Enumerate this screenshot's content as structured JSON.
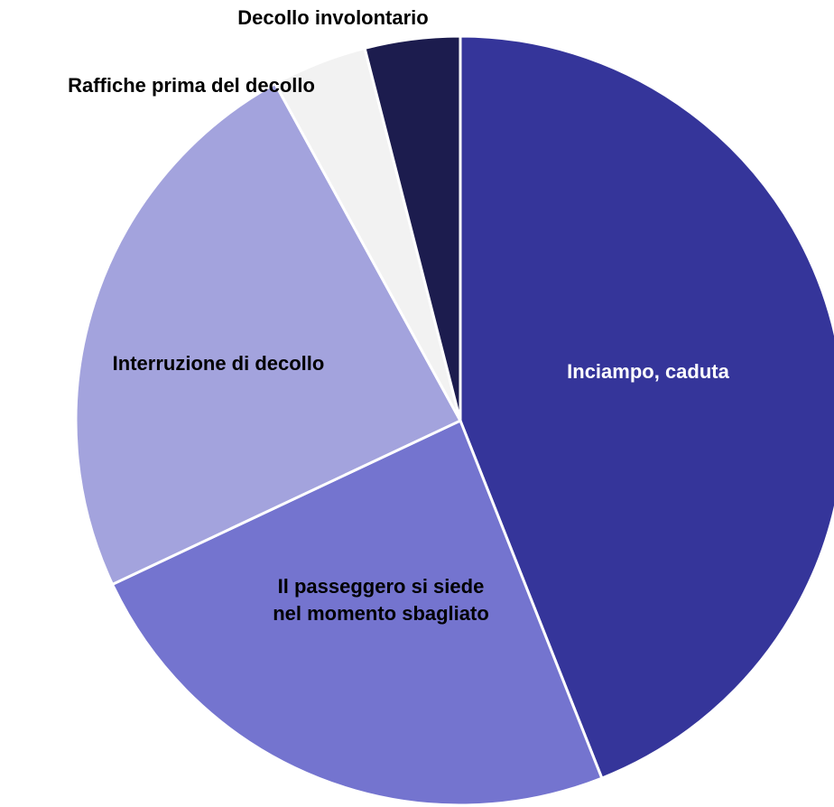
{
  "chart_data": {
    "type": "pie",
    "categories": [
      "Inciampo, caduta",
      "Il passeggero si siede nel momento sbagliato",
      "Interruzione di decollo",
      "Raffiche prima del decollo",
      "Decollo involontario"
    ],
    "values": [
      44,
      24,
      24,
      4,
      4
    ],
    "colors": [
      "#35359a",
      "#7474cf",
      "#a3a3dd",
      "#f2f2f2",
      "#1c1c4e"
    ],
    "label_colors": [
      "#ffffff",
      "#000000",
      "#000000",
      "#000000",
      "#000000"
    ]
  }
}
